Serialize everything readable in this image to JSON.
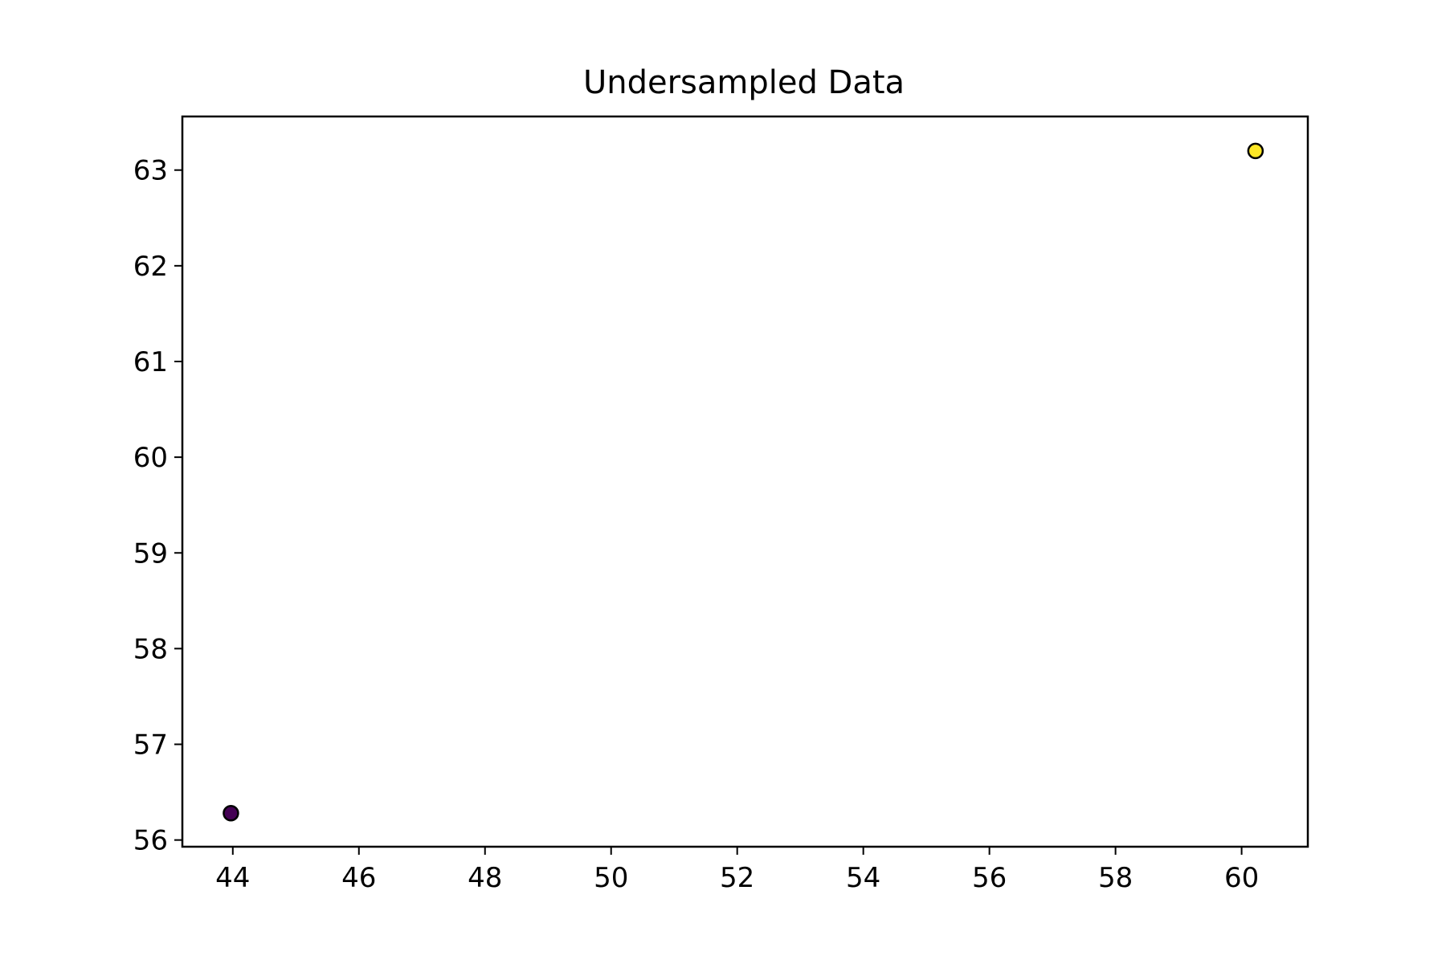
{
  "chart_data": {
    "type": "scatter",
    "title": "Undersampled Data",
    "xlabel": "",
    "ylabel": "",
    "xlim": [
      43.2,
      61.05
    ],
    "ylim": [
      55.93,
      63.56
    ],
    "xticks": [
      44,
      46,
      48,
      50,
      52,
      54,
      56,
      58,
      60
    ],
    "yticks": [
      56,
      57,
      58,
      59,
      60,
      61,
      62,
      63
    ],
    "grid": false,
    "legend": "none",
    "points": [
      {
        "x": 43.97,
        "y": 56.28,
        "color": "#440154"
      },
      {
        "x": 60.22,
        "y": 63.2,
        "color": "#fde725"
      }
    ]
  }
}
